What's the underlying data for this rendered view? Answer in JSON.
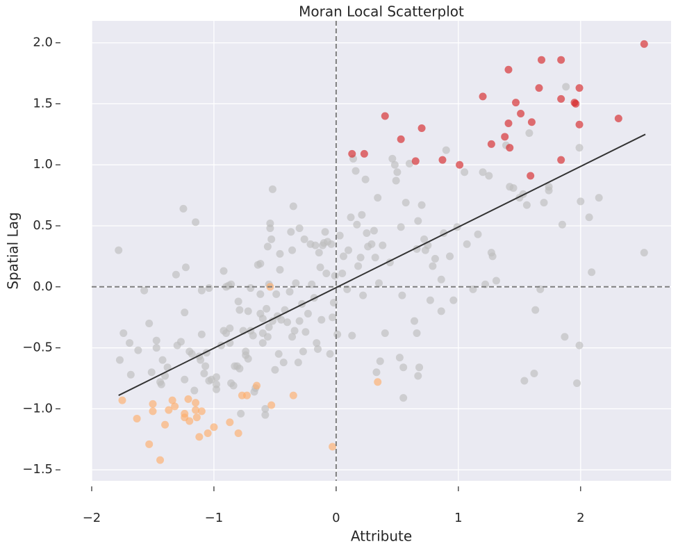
{
  "chart_data": {
    "type": "scatter",
    "title": "Moran Local Scatterplot",
    "x_label": "Attribute",
    "y_label": "Spatial Lag",
    "xlim": [
      -2.0,
      2.74
    ],
    "ylim": [
      -1.59,
      2.18
    ],
    "xticks": [
      {
        "value": -2,
        "label": "−2"
      },
      {
        "value": -1,
        "label": "−1"
      },
      0,
      1,
      2
    ],
    "yticks": [
      {
        "value": 2,
        "label": "2.0"
      },
      {
        "value": 1.5,
        "label": "1.5"
      },
      {
        "value": 1,
        "label": "1.0"
      },
      {
        "value": 0.5,
        "label": "0.5"
      },
      {
        "value": 0,
        "label": "0.0"
      },
      {
        "value": -0.5,
        "label": "−0.5"
      },
      {
        "value": -1,
        "label": "−1.0"
      },
      {
        "value": -1.5,
        "label": "−1.5"
      }
    ],
    "grid": true,
    "hlines": [
      0
    ],
    "vlines": [
      0
    ],
    "series": [
      {
        "color": "#bdbdbd",
        "x": [
          -1.78,
          -1.77,
          -1.74,
          -1.69,
          -1.68,
          -1.62,
          -1.57,
          -1.53,
          -1.51,
          -1.47,
          -1.47,
          -1.44,
          -1.43,
          -1.42,
          -1.4,
          -1.38,
          -1.31,
          -1.3,
          -1.27,
          -1.25,
          -1.24,
          -1.24,
          -1.23,
          -1.2,
          -1.18,
          -1.16,
          -1.15,
          -1.12,
          -1.11,
          -1.1,
          -1.1,
          -1.08,
          -1.07,
          -1.06,
          -1.04,
          -1.04,
          -1.02,
          -0.98,
          -0.98,
          -0.98,
          -0.94,
          -0.92,
          -0.92,
          -0.9,
          -0.9,
          -0.88,
          -0.86,
          -0.87,
          -0.87,
          -0.86,
          -0.84,
          -0.83,
          -0.81,
          -0.8,
          -0.79,
          -0.79,
          -0.78,
          -0.76,
          -0.74,
          -0.74,
          -0.72,
          -0.72,
          -0.7,
          -0.7,
          -0.68,
          -0.67,
          -0.66,
          -0.64,
          -0.62,
          -0.62,
          -0.62,
          -0.6,
          -0.6,
          -0.6,
          -0.58,
          -0.58,
          -0.57,
          -0.56,
          -0.56,
          -0.55,
          -0.55,
          -0.54,
          -0.54,
          -0.53,
          -0.52,
          -0.52,
          -0.5,
          -0.49,
          -0.48,
          -0.47,
          -0.46,
          -0.46,
          -0.45,
          -0.43,
          -0.42,
          -0.4,
          -0.38,
          -0.37,
          -0.36,
          -0.36,
          -0.35,
          -0.34,
          -0.33,
          -0.31,
          -0.3,
          -0.3,
          -0.28,
          -0.27,
          -0.26,
          -0.25,
          -0.23,
          -0.21,
          -0.2,
          -0.18,
          -0.17,
          -0.16,
          -0.15,
          -0.14,
          -0.13,
          -0.12,
          -0.11,
          -0.1,
          -0.09,
          -0.08,
          -0.07,
          -0.05,
          -0.04,
          -0.03,
          -0.02,
          -0.01,
          0.01,
          0.03,
          0.05,
          0.06,
          0.09,
          0.1,
          0.12,
          0.13,
          0.14,
          0.16,
          0.17,
          0.18,
          0.2,
          0.21,
          0.22,
          0.24,
          0.25,
          0.26,
          0.29,
          0.31,
          0.32,
          0.33,
          0.34,
          0.35,
          0.36,
          0.38,
          0.4,
          0.44,
          0.46,
          0.48,
          0.49,
          0.5,
          0.52,
          0.53,
          0.54,
          0.55,
          0.55,
          0.57,
          0.6,
          0.64,
          0.66,
          0.66,
          0.67,
          0.67,
          0.68,
          0.7,
          0.72,
          0.73,
          0.75,
          0.77,
          0.79,
          0.81,
          0.86,
          0.86,
          0.88,
          0.9,
          0.93,
          0.96,
          0.99,
          1.05,
          1.07,
          1.12,
          1.16,
          1.2,
          1.22,
          1.25,
          1.27,
          1.28,
          1.31,
          1.39,
          1.42,
          1.45,
          1.5,
          1.53,
          1.54,
          1.56,
          1.58,
          1.62,
          1.63,
          1.67,
          1.7,
          1.74,
          1.74,
          1.85,
          1.87,
          1.88,
          1.97,
          1.99,
          1.99,
          2.0,
          2.07,
          2.09,
          2.15,
          2.52
        ],
        "y": [
          0.3,
          -0.6,
          -0.38,
          -0.46,
          -0.72,
          -0.52,
          -0.03,
          -0.3,
          -0.7,
          -0.44,
          -0.5,
          -0.78,
          -0.8,
          -0.6,
          -0.73,
          -0.66,
          0.1,
          -0.48,
          -0.45,
          0.64,
          -0.21,
          -0.76,
          0.16,
          -0.53,
          -0.55,
          -0.85,
          0.53,
          -0.57,
          -0.6,
          -0.03,
          -0.39,
          -0.71,
          -0.65,
          -0.54,
          -0.77,
          -0.01,
          -0.76,
          -0.74,
          -0.84,
          -0.8,
          -0.48,
          -0.36,
          0.13,
          -0.38,
          0.0,
          0.01,
          0.02,
          -0.34,
          -0.46,
          -0.79,
          -0.81,
          -0.65,
          -0.65,
          -0.12,
          -0.19,
          -0.67,
          -1.04,
          -0.36,
          -0.53,
          -0.56,
          -0.59,
          -0.2,
          -0.01,
          -0.36,
          -0.4,
          -0.86,
          -0.83,
          0.18,
          0.19,
          -0.06,
          -0.22,
          -0.26,
          -0.38,
          -0.46,
          -1.0,
          -1.05,
          -0.18,
          0.33,
          -0.41,
          0.02,
          -0.33,
          0.48,
          0.52,
          0.39,
          0.8,
          -0.28,
          -0.68,
          -0.06,
          -0.24,
          -0.55,
          0.14,
          0.27,
          -0.27,
          -0.62,
          -0.19,
          -0.29,
          -0.04,
          0.45,
          0.3,
          -0.41,
          0.66,
          -0.36,
          0.03,
          -0.62,
          0.48,
          -0.28,
          -0.14,
          -0.53,
          0.39,
          -0.37,
          -0.22,
          0.35,
          0.02,
          -0.09,
          0.34,
          -0.46,
          -0.51,
          0.28,
          0.16,
          -0.27,
          0.34,
          0.36,
          0.45,
          0.11,
          0.37,
          -0.55,
          0.35,
          -0.25,
          -0.13,
          0.09,
          -0.39,
          0.42,
          0.11,
          0.25,
          -0.02,
          0.3,
          0.57,
          -0.4,
          1.05,
          0.95,
          0.51,
          0.17,
          0.24,
          0.59,
          -0.07,
          0.88,
          0.44,
          0.33,
          0.35,
          0.46,
          0.24,
          -0.7,
          0.73,
          0.03,
          -0.61,
          0.34,
          -0.38,
          0.2,
          1.05,
          1.0,
          0.87,
          0.94,
          -0.58,
          0.49,
          -0.07,
          -0.66,
          -0.91,
          0.69,
          1.01,
          -0.28,
          0.31,
          -0.38,
          0.54,
          -0.73,
          -0.66,
          0.67,
          0.39,
          0.3,
          0.34,
          -0.11,
          0.17,
          0.23,
          0.06,
          -0.2,
          0.44,
          1.12,
          0.25,
          -0.11,
          0.49,
          0.94,
          0.35,
          -0.02,
          0.43,
          0.94,
          0.02,
          0.91,
          0.28,
          0.25,
          0.05,
          1.16,
          0.82,
          0.81,
          0.73,
          0.76,
          -0.77,
          0.67,
          1.26,
          -0.71,
          -0.19,
          -0.02,
          0.69,
          0.82,
          0.79,
          0.51,
          -0.41,
          1.64,
          -0.79,
          1.14,
          -0.48,
          0.7,
          0.57,
          0.12,
          0.73,
          0.28
        ]
      },
      {
        "color": "#fdae6b",
        "x": [
          -1.75,
          -1.63,
          -1.53,
          -1.5,
          -1.5,
          -1.44,
          -1.4,
          -1.37,
          -1.34,
          -1.32,
          -1.24,
          -1.24,
          -1.21,
          -1.2,
          -1.15,
          -1.15,
          -1.14,
          -1.12,
          -1.1,
          -1.05,
          -1.0,
          -0.87,
          -0.8,
          -0.77,
          -0.73,
          -0.65,
          -0.53,
          -0.35,
          -0.54,
          -0.03,
          0.34
        ],
        "y": [
          -0.93,
          -1.08,
          -1.29,
          -0.96,
          -1.02,
          -1.42,
          -1.13,
          -1.01,
          -0.93,
          -0.98,
          -1.04,
          -1.07,
          -0.92,
          -1.1,
          -0.95,
          -1.01,
          -1.07,
          -1.23,
          -1.02,
          -1.2,
          -1.15,
          -1.11,
          -1.2,
          -0.89,
          -0.89,
          -0.81,
          -0.97,
          -0.89,
          0.0,
          -1.31,
          -0.78
        ]
      },
      {
        "color": "#d62728",
        "x": [
          2.52,
          1.41,
          1.68,
          1.84,
          1.47,
          1.51,
          1.2,
          1.66,
          1.99,
          1.84,
          1.95,
          1.96,
          2.31,
          1.99,
          1.6,
          1.41,
          1.38,
          1.27,
          1.42,
          0.4,
          0.53,
          0.7,
          0.13,
          0.23,
          0.65,
          0.87,
          1.01,
          1.59,
          1.84
        ],
        "y": [
          1.99,
          1.78,
          1.86,
          1.86,
          1.51,
          1.42,
          1.56,
          1.63,
          1.63,
          1.54,
          1.51,
          1.5,
          1.38,
          1.33,
          1.35,
          1.34,
          1.23,
          1.17,
          1.14,
          1.4,
          1.21,
          1.3,
          1.09,
          1.09,
          1.03,
          1.04,
          1.0,
          0.91,
          1.04
        ]
      }
    ],
    "fit_line": {
      "color": "#333333",
      "x": [
        -1.78,
        2.53
      ],
      "y": [
        -0.89,
        1.25
      ]
    }
  }
}
